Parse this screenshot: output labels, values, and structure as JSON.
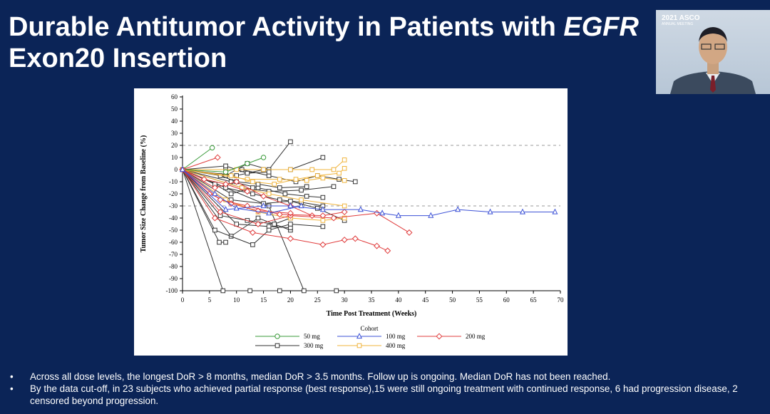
{
  "slide": {
    "title_line1": "Durable Antitumor Activity in Patients with ",
    "title_line1_italic": "EGFR",
    "title_line2": "Exon20 Insertion"
  },
  "video": {
    "logo_top": "2021 ASCO",
    "logo_sub": "ANNUAL MEETING"
  },
  "bullets": [
    {
      "marker": "•",
      "text": "Across all dose levels, the longest DoR > 8 months, median DoR > 3.5 months. Follow up is ongoing. Median DoR has not been reached."
    },
    {
      "marker": "•",
      "text": "By the data cut-off, in 23 subjects who achieved partial response (best response),15 were still ongoing treatment with continued response, 6 had progression disease, 2 censored beyond progression."
    }
  ],
  "chart_data": {
    "type": "line",
    "title": "",
    "xlabel": "Time Post Treatment (Weeks)",
    "ylabel": "Tumor Size Change from Baseline (%)",
    "xlim": [
      0,
      70
    ],
    "ylim": [
      -100,
      60
    ],
    "xticks": [
      0,
      5,
      10,
      15,
      20,
      25,
      30,
      35,
      40,
      45,
      50,
      55,
      60,
      65,
      70
    ],
    "yticks": [
      60,
      50,
      40,
      30,
      20,
      10,
      0,
      -10,
      -20,
      -30,
      -40,
      -50,
      -60,
      -70,
      -80,
      -90,
      -100
    ],
    "reference_lines": [
      20,
      -30
    ],
    "legend_title": "Cohort",
    "legend_position": "bottom",
    "series": [
      {
        "name": "50 mg",
        "color": "#3a9a3a",
        "marker": "circle",
        "lines": [
          [
            [
              0,
              0
            ],
            [
              5.5,
              18
            ]
          ],
          [
            [
              0,
              0
            ],
            [
              8,
              -2
            ],
            [
              12,
              5
            ],
            [
              15,
              10
            ]
          ]
        ]
      },
      {
        "name": "100 mg",
        "color": "#3b50d6",
        "marker": "triangle",
        "lines": [
          [
            [
              0,
              0
            ],
            [
              8,
              -33
            ],
            [
              15,
              -30
            ],
            [
              20,
              -30
            ],
            [
              26,
              -33
            ],
            [
              33,
              -33
            ],
            [
              37,
              -36
            ],
            [
              40,
              -38
            ],
            [
              46,
              -38
            ],
            [
              51,
              -33
            ],
            [
              57,
              -35
            ],
            [
              63,
              -35
            ],
            [
              69,
              -35
            ]
          ],
          [
            [
              0,
              0
            ],
            [
              6,
              -20
            ],
            [
              10,
              -32
            ],
            [
              16,
              -36
            ],
            [
              22,
              -30
            ]
          ]
        ]
      },
      {
        "name": "200 mg",
        "color": "#e03c3c",
        "marker": "diamond",
        "lines": [
          [
            [
              0,
              0
            ],
            [
              6.5,
              10
            ]
          ],
          [
            [
              0,
              0
            ],
            [
              6,
              -40
            ],
            [
              13,
              -52
            ],
            [
              20,
              -57
            ],
            [
              26,
              -62
            ],
            [
              30,
              -58
            ],
            [
              32,
              -57
            ],
            [
              36,
              -63
            ],
            [
              38,
              -67
            ]
          ],
          [
            [
              0,
              0
            ],
            [
              7,
              -35
            ],
            [
              14,
              -45
            ],
            [
              20,
              -38
            ],
            [
              28,
              -40
            ],
            [
              36,
              -36
            ],
            [
              42,
              -52
            ]
          ],
          [
            [
              0,
              0
            ],
            [
              5,
              -20
            ],
            [
              9,
              -28
            ],
            [
              14,
              -34
            ],
            [
              20,
              -36
            ]
          ],
          [
            [
              0,
              0
            ],
            [
              6,
              -15
            ],
            [
              10,
              -10
            ],
            [
              15,
              -22
            ],
            [
              20,
              -30
            ],
            [
              24,
              -38
            ]
          ],
          [
            [
              0,
              0
            ],
            [
              4,
              -8
            ],
            [
              8,
              -12
            ],
            [
              12,
              -18
            ]
          ],
          [
            [
              0,
              0
            ],
            [
              7,
              -25
            ],
            [
              12,
              -30
            ],
            [
              18,
              -37
            ],
            [
              26,
              -38
            ],
            [
              30,
              -35
            ]
          ]
        ]
      },
      {
        "name": "300 mg",
        "color": "#333333",
        "marker": "square",
        "lines": [
          [
            [
              0,
              0
            ],
            [
              7.5,
              -100
            ],
            [
              12.5,
              -100
            ],
            [
              18,
              -100
            ]
          ],
          [
            [
              0,
              0
            ],
            [
              16,
              -30
            ],
            [
              22.5,
              -100
            ],
            [
              28.5,
              -100
            ]
          ],
          [
            [
              0,
              0
            ],
            [
              6.8,
              -60
            ],
            [
              8,
              -60
            ]
          ],
          [
            [
              0,
              0
            ],
            [
              9,
              -55
            ],
            [
              14,
              -40
            ],
            [
              20,
              -50
            ]
          ],
          [
            [
              0,
              0
            ],
            [
              10,
              -45
            ],
            [
              16,
              -47
            ],
            [
              20,
              -48
            ]
          ],
          [
            [
              0,
              0
            ],
            [
              6,
              -50
            ],
            [
              13,
              -62
            ],
            [
              16,
              -50
            ],
            [
              20,
              -45
            ],
            [
              26,
              -47
            ]
          ],
          [
            [
              0,
              0
            ],
            [
              8,
              -5
            ],
            [
              12,
              5
            ],
            [
              16,
              0
            ],
            [
              20,
              23
            ]
          ],
          [
            [
              0,
              0
            ],
            [
              10,
              -5
            ],
            [
              15,
              0
            ],
            [
              20,
              0
            ],
            [
              26,
              10
            ]
          ],
          [
            [
              0,
              0
            ],
            [
              8,
              0
            ],
            [
              11,
              0
            ],
            [
              16,
              -5
            ],
            [
              21,
              -10
            ],
            [
              25,
              -5
            ],
            [
              29,
              -8
            ],
            [
              32,
              -10
            ]
          ],
          [
            [
              0,
              0
            ],
            [
              9,
              -10
            ],
            [
              14,
              -15
            ],
            [
              19,
              -20
            ],
            [
              23,
              -22
            ],
            [
              26,
              -23
            ]
          ],
          [
            [
              0,
              0
            ],
            [
              8,
              -15
            ],
            [
              13,
              -20
            ],
            [
              18,
              -25
            ],
            [
              22,
              -27
            ],
            [
              26,
              -30
            ]
          ],
          [
            [
              0,
              0
            ],
            [
              9,
              -25
            ],
            [
              15,
              -28
            ],
            [
              20,
              -26
            ],
            [
              25,
              -32
            ],
            [
              30,
              -42
            ]
          ],
          [
            [
              0,
              0
            ],
            [
              7,
              -38
            ],
            [
              12,
              -42
            ],
            [
              17,
              -45
            ],
            [
              20,
              -40
            ]
          ],
          [
            [
              0,
              0
            ],
            [
              11,
              -15
            ],
            [
              16,
              -18
            ],
            [
              22,
              -17
            ],
            [
              28,
              -14
            ]
          ],
          [
            [
              0,
              0
            ],
            [
              8,
              3
            ],
            [
              12,
              -3
            ],
            [
              16,
              -2
            ]
          ],
          [
            [
              0,
              0
            ],
            [
              7,
              -5
            ],
            [
              10,
              -10
            ],
            [
              14,
              -12
            ],
            [
              18,
              -15
            ],
            [
              23,
              -14
            ]
          ],
          [
            [
              0,
              0
            ],
            [
              6,
              -12
            ],
            [
              9,
              -20
            ],
            [
              13,
              -15
            ]
          ]
        ]
      },
      {
        "name": "400 mg",
        "color": "#f0b43c",
        "marker": "square",
        "lines": [
          [
            [
              0,
              0
            ],
            [
              12,
              -8
            ],
            [
              18,
              -8
            ],
            [
              23,
              -9
            ],
            [
              26,
              -7
            ],
            [
              30,
              -9
            ]
          ],
          [
            [
              0,
              0
            ],
            [
              10,
              0
            ],
            [
              15,
              0
            ],
            [
              20,
              0
            ],
            [
              24,
              0
            ],
            [
              28,
              0
            ],
            [
              30,
              8
            ]
          ],
          [
            [
              0,
              0
            ],
            [
              9,
              -5
            ],
            [
              13,
              -10
            ],
            [
              17,
              -12
            ],
            [
              21,
              -8
            ],
            [
              25,
              -5
            ],
            [
              29,
              -3
            ],
            [
              30,
              1
            ]
          ],
          [
            [
              0,
              0
            ],
            [
              11,
              -15
            ],
            [
              16,
              -20
            ],
            [
              22,
              -25
            ],
            [
              30,
              -30
            ]
          ],
          [
            [
              0,
              0
            ],
            [
              8,
              -25
            ],
            [
              14,
              -35
            ],
            [
              20,
              -40
            ],
            [
              26,
              -42
            ],
            [
              30,
              -40
            ]
          ]
        ]
      }
    ]
  }
}
